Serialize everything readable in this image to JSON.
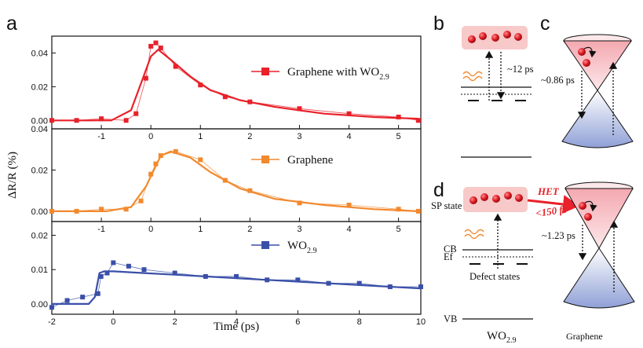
{
  "panel_labels": {
    "a": "a",
    "b": "b",
    "c": "c",
    "d": "d"
  },
  "colors": {
    "series_1": "#e8212a",
    "series_2": "#f2892e",
    "series_3": "#3a4fa8",
    "het": "#e8212a"
  },
  "chart_data": [
    {
      "type": "scatter",
      "series": [
        {
          "name": "Graphene with WO",
          "name_sub": "2.9",
          "points": [
            [
              -2.0,
              0.0
            ],
            [
              -1.5,
              0.0
            ],
            [
              -1.0,
              0.001
            ],
            [
              -0.5,
              0.0
            ],
            [
              -0.3,
              0.004
            ],
            [
              -0.1,
              0.025
            ],
            [
              0.0,
              0.044
            ],
            [
              0.1,
              0.046
            ],
            [
              0.2,
              0.043
            ],
            [
              0.5,
              0.032
            ],
            [
              1.0,
              0.021
            ],
            [
              1.5,
              0.014
            ],
            [
              2.0,
              0.011
            ],
            [
              3.0,
              0.007
            ],
            [
              4.0,
              0.004
            ],
            [
              5.0,
              0.002
            ],
            [
              5.4,
              0.0
            ]
          ],
          "fit": [
            [
              -2.0,
              0.0
            ],
            [
              -0.8,
              0.0
            ],
            [
              -0.4,
              0.006
            ],
            [
              -0.2,
              0.022
            ],
            [
              0.0,
              0.038
            ],
            [
              0.15,
              0.042
            ],
            [
              0.4,
              0.036
            ],
            [
              0.8,
              0.026
            ],
            [
              1.2,
              0.018
            ],
            [
              1.8,
              0.012
            ],
            [
              2.5,
              0.008
            ],
            [
              3.5,
              0.004
            ],
            [
              4.5,
              0.002
            ],
            [
              5.4,
              0.001
            ]
          ]
        }
      ],
      "ylim": [
        -0.005,
        0.05
      ],
      "yticks": [
        0.0,
        0.02,
        0.04
      ],
      "yticklabels": [
        "0.00",
        "0.02",
        "0.04"
      ],
      "xlim": [
        -2.0,
        5.45
      ],
      "xticks": [
        -1,
        0,
        1,
        2,
        3,
        4,
        5
      ],
      "xticklabels": [
        "-1",
        "0",
        "1",
        "2",
        "3",
        "4",
        "5"
      ]
    },
    {
      "type": "scatter",
      "series": [
        {
          "name": "Graphene",
          "points": [
            [
              -2.0,
              0.0
            ],
            [
              -1.5,
              0.0
            ],
            [
              -1.0,
              0.001
            ],
            [
              -0.5,
              0.001
            ],
            [
              -0.2,
              0.005
            ],
            [
              0.0,
              0.018
            ],
            [
              0.1,
              0.023
            ],
            [
              0.2,
              0.027
            ],
            [
              0.5,
              0.029
            ],
            [
              1.0,
              0.025
            ],
            [
              1.5,
              0.015
            ],
            [
              2.0,
              0.01
            ],
            [
              3.0,
              0.004
            ],
            [
              4.0,
              0.003
            ],
            [
              5.0,
              0.001
            ],
            [
              5.4,
              0.0
            ]
          ],
          "fit": [
            [
              -2.0,
              0.0
            ],
            [
              -0.9,
              0.0
            ],
            [
              -0.4,
              0.002
            ],
            [
              -0.1,
              0.012
            ],
            [
              0.1,
              0.022
            ],
            [
              0.2,
              0.027
            ],
            [
              0.4,
              0.029
            ],
            [
              0.8,
              0.026
            ],
            [
              1.2,
              0.019
            ],
            [
              1.8,
              0.011
            ],
            [
              2.5,
              0.006
            ],
            [
              3.5,
              0.003
            ],
            [
              4.5,
              0.001
            ],
            [
              5.4,
              0.0
            ]
          ]
        }
      ],
      "ylim": [
        -0.005,
        0.04
      ],
      "yticks": [
        0.0,
        0.02,
        0.04
      ],
      "yticklabels": [
        "0.00",
        "0.02",
        "0.04"
      ],
      "xlim": [
        -2.0,
        5.45
      ],
      "xticks": [
        -1,
        0,
        1,
        2,
        3,
        4,
        5
      ],
      "xticklabels": [
        "-1",
        "0",
        "1",
        "2",
        "3",
        "4",
        "5"
      ]
    },
    {
      "type": "scatter",
      "series": [
        {
          "name": "WO",
          "name_sub": "2.9",
          "points": [
            [
              -2.0,
              -0.001
            ],
            [
              -1.5,
              0.001
            ],
            [
              -1.0,
              0.002
            ],
            [
              -0.5,
              0.003
            ],
            [
              -0.4,
              0.008
            ],
            [
              -0.2,
              0.009
            ],
            [
              0.0,
              0.012
            ],
            [
              0.5,
              0.011
            ],
            [
              1.0,
              0.01
            ],
            [
              2.0,
              0.009
            ],
            [
              3.0,
              0.008
            ],
            [
              4.0,
              0.008
            ],
            [
              5.0,
              0.007
            ],
            [
              6.0,
              0.007
            ],
            [
              7.0,
              0.006
            ],
            [
              8.0,
              0.006
            ],
            [
              9.0,
              0.005
            ],
            [
              10.0,
              0.005
            ]
          ],
          "fit": [
            [
              -2.0,
              0.0
            ],
            [
              -0.8,
              0.0
            ],
            [
              -0.6,
              0.002
            ],
            [
              -0.45,
              0.009
            ],
            [
              -0.3,
              0.0095
            ],
            [
              0.0,
              0.0095
            ],
            [
              1.0,
              0.009
            ],
            [
              2.0,
              0.0085
            ],
            [
              3.0,
              0.008
            ],
            [
              4.0,
              0.0075
            ],
            [
              5.0,
              0.007
            ],
            [
              6.0,
              0.0065
            ],
            [
              7.0,
              0.006
            ],
            [
              8.0,
              0.0055
            ],
            [
              9.0,
              0.005
            ],
            [
              10.0,
              0.0045
            ]
          ]
        }
      ],
      "ylim": [
        -0.003,
        0.024
      ],
      "yticks": [
        0.0,
        0.01,
        0.02
      ],
      "yticklabels": [
        "0.00",
        "0.01",
        "0.02"
      ],
      "xlim": [
        -2.0,
        10.0
      ],
      "xticks": [
        -2,
        0,
        2,
        4,
        6,
        8,
        10
      ],
      "xticklabels": [
        "-2",
        "0",
        "2",
        "4",
        "6",
        "8",
        "10"
      ],
      "xlabel": "Time (ps)"
    }
  ],
  "shared_ylabel": "ΔR/R (%)",
  "panel_b": {
    "time_label": "~12 ps"
  },
  "panel_c": {
    "time_label": "~0.86 ps"
  },
  "panel_d": {
    "sp_state": "SP state",
    "cb": "CB",
    "ef": "Ef",
    "defect_states": "Defect states",
    "vb": "VB",
    "wo_label": "WO",
    "wo_sub": "2.9",
    "het_label": "HET",
    "het_time": "<150 fs",
    "graphene_time": "~1.23 ps",
    "graphene_label": "Graphene"
  }
}
